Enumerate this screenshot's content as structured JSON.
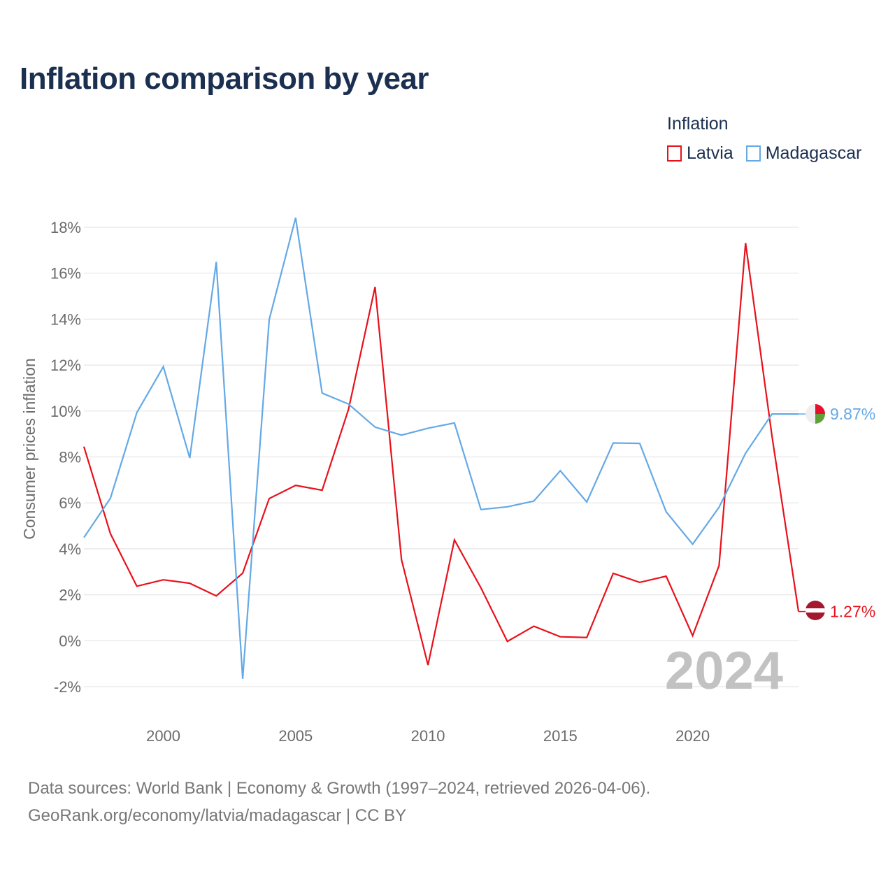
{
  "title": "Inflation comparison by year",
  "legend": {
    "title": "Inflation",
    "items": [
      {
        "label": "Latvia",
        "color": "#e8111b"
      },
      {
        "label": "Madagascar",
        "color": "#64a9e6"
      }
    ]
  },
  "sources": {
    "line1": "Data sources: World Bank | Economy & Growth (1997–2024, retrieved 2026-04-06).",
    "line2": "GeoRank.org/economy/latvia/madagascar | CC BY"
  },
  "chart_data": {
    "type": "line",
    "title": "Inflation comparison by year",
    "xlabel": "",
    "ylabel": "Consumer prices inflation",
    "x": [
      1997,
      1998,
      1999,
      2000,
      2001,
      2002,
      2003,
      2004,
      2005,
      2006,
      2007,
      2008,
      2009,
      2010,
      2011,
      2012,
      2013,
      2014,
      2015,
      2016,
      2017,
      2018,
      2019,
      2020,
      2021,
      2022,
      2023,
      2024
    ],
    "xlim": [
      1997,
      2024
    ],
    "ylim": [
      -2,
      18
    ],
    "x_ticks": [
      {
        "value": 2000,
        "label": "2000"
      },
      {
        "value": 2005,
        "label": "2005"
      },
      {
        "value": 2010,
        "label": "2010"
      },
      {
        "value": 2015,
        "label": "2015"
      },
      {
        "value": 2020,
        "label": "2020"
      }
    ],
    "y_ticks": [
      {
        "value": -2,
        "label": "-2%"
      },
      {
        "value": 0,
        "label": "0%"
      },
      {
        "value": 2,
        "label": "2%"
      },
      {
        "value": 4,
        "label": "4%"
      },
      {
        "value": 6,
        "label": "6%"
      },
      {
        "value": 8,
        "label": "8%"
      },
      {
        "value": 10,
        "label": "10%"
      },
      {
        "value": 12,
        "label": "12%"
      },
      {
        "value": 14,
        "label": "14%"
      },
      {
        "value": 16,
        "label": "16%"
      },
      {
        "value": 18,
        "label": "18%"
      }
    ],
    "grid": true,
    "legend_position": "top-right",
    "current_year_label": "2024",
    "series": [
      {
        "name": "Latvia",
        "color": "#e8111b",
        "values": [
          8.45,
          4.66,
          2.37,
          2.65,
          2.5,
          1.95,
          2.94,
          6.19,
          6.76,
          6.55,
          10.08,
          15.4,
          3.53,
          -1.06,
          4.39,
          2.3,
          -0.03,
          0.63,
          0.17,
          0.14,
          2.93,
          2.54,
          2.81,
          0.22,
          3.27,
          17.31,
          8.9,
          1.27
        ],
        "end_label": "1.27%"
      },
      {
        "name": "Madagascar",
        "color": "#64a9e6",
        "values": [
          4.49,
          6.2,
          9.93,
          11.93,
          7.95,
          16.49,
          -1.66,
          13.98,
          18.41,
          10.78,
          10.3,
          9.3,
          8.95,
          9.25,
          9.48,
          5.71,
          5.83,
          6.08,
          7.4,
          6.04,
          8.61,
          8.59,
          5.61,
          4.2,
          5.81,
          8.16,
          9.87,
          9.87
        ],
        "end_label": "9.87%"
      }
    ]
  }
}
